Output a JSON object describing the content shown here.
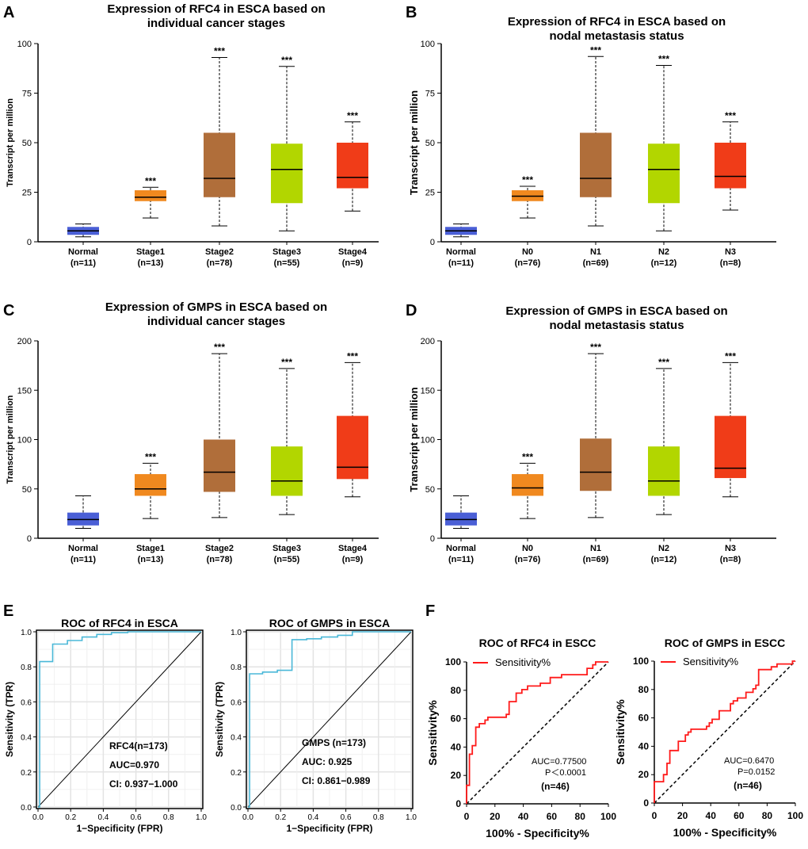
{
  "colors": {
    "Normal": "#4a5fd6",
    "Stage1": "#f0891f",
    "N0": "#f0891f",
    "Stage2": "#b06e3a",
    "N1": "#b06e3a",
    "Stage3": "#b2d600",
    "N2": "#b2d600",
    "Stage4": "#f03c18",
    "N3": "#f03c18",
    "roc_e": "#4ab8d8",
    "roc_f": "#ff1a1a"
  },
  "chart_data": [
    {
      "panel": "A",
      "type": "box",
      "title": [
        "Expression of RFC4 in ESCA based on",
        "individual cancer stages"
      ],
      "ylabel": "Transcript per million",
      "ylim": [
        0,
        100
      ],
      "yticks": [
        0,
        25,
        50,
        75,
        100
      ],
      "categories": [
        "Normal",
        "Stage1",
        "Stage2",
        "Stage3",
        "Stage4"
      ],
      "counts": [
        "(n=11)",
        "(n=13)",
        "(n=78)",
        "(n=55)",
        "(n=9)"
      ],
      "significance": [
        "",
        "***",
        "***",
        "***",
        "***"
      ],
      "boxes": [
        [
          2.5,
          3.5,
          5.5,
          7.5,
          9
        ],
        [
          12,
          20.5,
          22.5,
          26,
          27.5
        ],
        [
          8,
          22.5,
          32,
          55,
          93
        ],
        [
          5.5,
          19.5,
          36.5,
          49.5,
          88.5
        ],
        [
          15.5,
          27,
          32.5,
          50,
          60.5
        ]
      ]
    },
    {
      "panel": "B",
      "type": "box",
      "title": [
        "Expression of RFC4 in ESCA based on",
        "nodal metastasis status"
      ],
      "ylabel": "Transcript per million",
      "ylim": [
        0,
        100
      ],
      "yticks": [
        0,
        25,
        50,
        75,
        100
      ],
      "categories": [
        "Normal",
        "N0",
        "N1",
        "N2",
        "N3"
      ],
      "counts": [
        "(n=11)",
        "(n=76)",
        "(n=69)",
        "(n=12)",
        "(n=8)"
      ],
      "significance": [
        "",
        "***",
        "***",
        "***",
        "***"
      ],
      "boxes": [
        [
          2.5,
          3.5,
          5.5,
          7.5,
          9
        ],
        [
          12,
          20.5,
          23,
          26,
          28
        ],
        [
          8,
          22.5,
          32,
          55,
          93.5
        ],
        [
          5.5,
          19.5,
          36.5,
          49.5,
          89
        ],
        [
          16,
          27,
          33,
          50,
          60.5
        ]
      ]
    },
    {
      "panel": "C",
      "type": "box",
      "title": [
        "Expression of GMPS in ESCA based on",
        "individual cancer stages"
      ],
      "ylabel": "Transcript per million",
      "ylim": [
        0,
        200
      ],
      "yticks": [
        0,
        50,
        100,
        150,
        200
      ],
      "categories": [
        "Normal",
        "Stage1",
        "Stage2",
        "Stage3",
        "Stage4"
      ],
      "counts": [
        "(n=11)",
        "(n=13)",
        "(n=78)",
        "(n=55)",
        "(n=9)"
      ],
      "significance": [
        "",
        "***",
        "***",
        "***",
        "***"
      ],
      "boxes": [
        [
          10,
          13,
          19,
          26,
          43
        ],
        [
          20,
          43,
          50,
          65,
          76
        ],
        [
          21,
          47,
          67,
          100,
          187
        ],
        [
          24,
          43,
          58,
          93,
          172
        ],
        [
          42,
          60,
          72,
          124,
          178
        ]
      ]
    },
    {
      "panel": "D",
      "type": "box",
      "title": [
        "Expression of GMPS in ESCA based on",
        "nodal metastasis status"
      ],
      "ylabel": "Transcript per million",
      "ylim": [
        0,
        200
      ],
      "yticks": [
        0,
        50,
        100,
        150,
        200
      ],
      "categories": [
        "Normal",
        "N0",
        "N1",
        "N2",
        "N3"
      ],
      "counts": [
        "(n=11)",
        "(n=76)",
        "(n=69)",
        "(n=12)",
        "(n=8)"
      ],
      "significance": [
        "",
        "***",
        "***",
        "***",
        "***"
      ],
      "boxes": [
        [
          10,
          13,
          19,
          26,
          43
        ],
        [
          20,
          43,
          51,
          65,
          76
        ],
        [
          21,
          48,
          67,
          101,
          187
        ],
        [
          24,
          43,
          58,
          93,
          172
        ],
        [
          42,
          61,
          71,
          124,
          178
        ]
      ]
    },
    {
      "panel": "E",
      "type": "line",
      "title": "ROC of RFC4 in ESCA",
      "xlabel": "1−Specificity (FPR)",
      "ylabel": "Sensitivity (TPR)",
      "xlim": [
        0,
        1
      ],
      "ylim": [
        0,
        1
      ],
      "ticks": [
        "0.0",
        "0.2",
        "0.4",
        "0.6",
        "0.8",
        "1.0"
      ],
      "grid": true,
      "annotations": [
        "RFC4(n=173)",
        "AUC=0.970",
        "CI: 0.937−1.000"
      ],
      "x": [
        0,
        0.01,
        0.01,
        0.09,
        0.09,
        0.18,
        0.18,
        0.27,
        0.27,
        0.36,
        0.36,
        0.45,
        0.45,
        0.55,
        0.55,
        1
      ],
      "y": [
        0,
        0,
        0.83,
        0.83,
        0.93,
        0.93,
        0.95,
        0.95,
        0.97,
        0.97,
        0.985,
        0.985,
        0.995,
        0.995,
        1,
        1
      ]
    },
    {
      "panel": "E2",
      "type": "line",
      "title": "ROC of GMPS in ESCA",
      "xlabel": "1−Specificity (FPR)",
      "ylabel": "Sensitivity (TPR)",
      "xlim": [
        0,
        1
      ],
      "ylim": [
        0,
        1
      ],
      "ticks": [
        "0.0",
        "0.2",
        "0.4",
        "0.6",
        "0.8",
        "1.0"
      ],
      "grid": true,
      "annotations": [
        "GMPS (n=173)",
        "AUC: 0.925",
        "CI: 0.861−0.989"
      ],
      "x": [
        0,
        0.01,
        0.01,
        0.09,
        0.09,
        0.18,
        0.18,
        0.27,
        0.27,
        0.36,
        0.36,
        0.45,
        0.45,
        0.55,
        0.55,
        0.64,
        0.64,
        1
      ],
      "y": [
        0,
        0,
        0.76,
        0.76,
        0.77,
        0.77,
        0.78,
        0.78,
        0.955,
        0.955,
        0.96,
        0.96,
        0.97,
        0.97,
        0.98,
        0.98,
        1,
        1
      ]
    },
    {
      "panel": "F",
      "type": "line",
      "title": "ROC of RFC4 in ESCC",
      "xlabel": "100% - Specificity%",
      "ylabel": "Sensitivity%",
      "xlim": [
        0,
        100
      ],
      "ylim": [
        0,
        100
      ],
      "ticks": [
        "0",
        "20",
        "40",
        "60",
        "80",
        "100"
      ],
      "grid": false,
      "legend": "Sensitivity%",
      "annotations": [
        "AUC=0.77500",
        "P＜0.0001",
        "(n=46)"
      ],
      "x": [
        0,
        0,
        2,
        2,
        4,
        4,
        6.5,
        6.5,
        9,
        9,
        13,
        13,
        15,
        15,
        28,
        28,
        30,
        30,
        35,
        35,
        39,
        39,
        43,
        43,
        52,
        52,
        59,
        59,
        67,
        67,
        85,
        85,
        89,
        89,
        91,
        91,
        100
      ],
      "y": [
        0,
        13,
        13,
        35,
        35,
        41,
        41,
        54,
        54,
        56.5,
        56.5,
        59,
        59,
        61,
        61,
        63,
        63,
        72,
        72,
        78,
        78,
        80.5,
        80.5,
        83,
        83,
        85,
        85,
        89,
        89,
        91,
        91,
        95.5,
        95.5,
        98,
        98,
        100,
        100
      ]
    },
    {
      "panel": "F2",
      "type": "line",
      "title": "ROC of GMPS in ESCC",
      "xlabel": "100% - Specificity%",
      "ylabel": "Sensitivity%",
      "xlim": [
        0,
        100
      ],
      "ylim": [
        0,
        100
      ],
      "ticks": [
        "0",
        "20",
        "40",
        "60",
        "80",
        "100"
      ],
      "grid": false,
      "legend": "Sensitivity%",
      "annotations": [
        "AUC=0.6470",
        "P=0.0152",
        "(n=46)"
      ],
      "x": [
        0,
        0,
        6.5,
        6.5,
        9,
        9,
        11,
        11,
        17,
        17,
        22,
        22,
        24,
        24,
        26,
        26,
        37,
        37,
        39,
        39,
        41,
        41,
        46,
        46,
        54,
        54,
        56,
        56,
        59,
        59,
        65,
        65,
        70,
        70,
        72,
        72,
        74,
        74,
        83,
        83,
        87,
        87,
        98,
        98,
        100
      ],
      "y": [
        0,
        15,
        15,
        20,
        20,
        28,
        28,
        37,
        37,
        43.5,
        43.5,
        48,
        48,
        50,
        50,
        52,
        52,
        54,
        54,
        56.5,
        56.5,
        59,
        59,
        65,
        65,
        70,
        70,
        72,
        72,
        74,
        74,
        78,
        78,
        80.5,
        80.5,
        83,
        83,
        94,
        94,
        96,
        96,
        98,
        98,
        100,
        100
      ]
    }
  ],
  "panel_labels": [
    "A",
    "B",
    "C",
    "D",
    "E",
    "F"
  ]
}
